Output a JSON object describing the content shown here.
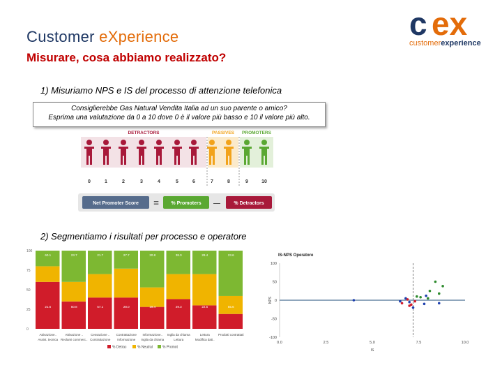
{
  "header": {
    "title_main": "Customer ",
    "title_accent": "eXperience",
    "subtitle": "Misurare, cosa abbiamo realizzato?"
  },
  "logo": {
    "mark_c": "c",
    "mark_ex": "ex",
    "word_a": "customer",
    "word_b": "experience"
  },
  "step1": {
    "label": "1) Misuriamo NPS e IS del processo di attenzione telefonica",
    "question_line1": "Consiglierebbe Gas Natural Vendita Italia ad un suo parente o amico?",
    "question_line2": "Esprima una valutazione da 0 a 10 dove 0 è il valore più basso e 10 il valore più alto."
  },
  "nps": {
    "detractors_label": "DETRACTORS",
    "passives_label": "PASSIVES",
    "promoters_label": "PROMOTERS",
    "scale": [
      "0",
      "1",
      "2",
      "3",
      "4",
      "5",
      "6",
      "7",
      "8",
      "9",
      "10"
    ],
    "formula_nps": "Net Promoter Score",
    "formula_eq": "=",
    "formula_promoters": "% Promoters",
    "formula_minus": "—",
    "formula_detractors": "% Detractors",
    "colors": {
      "detractor": "#a8193a",
      "passive": "#f2a31b",
      "promoter": "#5aa832",
      "formula_bg": "#566c8c"
    }
  },
  "step2": {
    "label": "2) Segmentiamo i risultati per processo e operatore"
  },
  "chart_data": [
    {
      "type": "bar",
      "stacked": true,
      "percent": true,
      "categories": [
        "Attivazione..",
        "Attivazione ..",
        "Cessazione ..",
        "Contrattazione",
        "Informazione..",
        "Inglia da chiama",
        "Lettura",
        "Prodotti contrattati"
      ],
      "bottom_labels": [
        "Assist. tecnica",
        "Reclami commerc..",
        "Contrattazione",
        "Informazione",
        "Inglia da chiama",
        "Lettura",
        "Modifica dati..",
        ""
      ],
      "yticks": [
        "0",
        "25",
        "50",
        "75",
        "100"
      ],
      "series": [
        {
          "name": "% Detrac",
          "color": "#d01c2a",
          "values": [
            60,
            35,
            40,
            40,
            28,
            38,
            30,
            19
          ]
        },
        {
          "name": "% Neutral",
          "color": "#f0b400",
          "values": [
            20,
            25,
            30,
            37,
            25,
            32,
            40,
            23
          ]
        },
        {
          "name": "% Promot",
          "color": "#7db832",
          "values": [
            20,
            40,
            30,
            23,
            47,
            30,
            30,
            58
          ]
        }
      ],
      "value_labels": [
        "60.1",
        "21.6",
        "23.7",
        "50.8",
        "21.7",
        "57.1",
        "27.7",
        "28.0",
        "20.8",
        "19.4",
        "38.0",
        "29.3",
        "28.4",
        "22.5",
        "23.6",
        "55.6"
      ],
      "legend": [
        "% Detrac",
        "% Neutral",
        "% Promot"
      ]
    },
    {
      "type": "scatter",
      "title": "IS-NPS Operatore",
      "xlabel": "IS",
      "ylabel": "NPS",
      "xlim": [
        0.0,
        10.0
      ],
      "ylim": [
        -100,
        100
      ],
      "xticks": [
        "0.0",
        "2.5",
        "5.0",
        "7.5",
        "10.0"
      ],
      "yticks": [
        "100",
        "50",
        "0",
        "-50",
        "-100"
      ],
      "refline_x": 7.2,
      "refline_y": 0,
      "series": [
        {
          "name": "promoters",
          "color": "#2e8b2e",
          "points": [
            [
              8.4,
              50
            ],
            [
              8.8,
              38
            ],
            [
              8.1,
              25
            ],
            [
              8.6,
              18
            ],
            [
              7.4,
              10
            ],
            [
              7.6,
              8
            ],
            [
              8.0,
              5
            ]
          ]
        },
        {
          "name": "neutral",
          "color": "#1e3fae",
          "points": [
            [
              4.0,
              0
            ],
            [
              6.8,
              5
            ],
            [
              7.0,
              -5
            ],
            [
              7.8,
              -10
            ],
            [
              7.2,
              -20
            ],
            [
              8.6,
              -8
            ],
            [
              7.9,
              12
            ],
            [
              6.5,
              -3
            ]
          ]
        },
        {
          "name": "detractors",
          "color": "#d01c2a",
          "points": [
            [
              6.6,
              -8
            ],
            [
              7.1,
              -12
            ],
            [
              6.9,
              2
            ],
            [
              7.3,
              -3
            ],
            [
              7.0,
              -15
            ]
          ]
        }
      ]
    }
  ]
}
